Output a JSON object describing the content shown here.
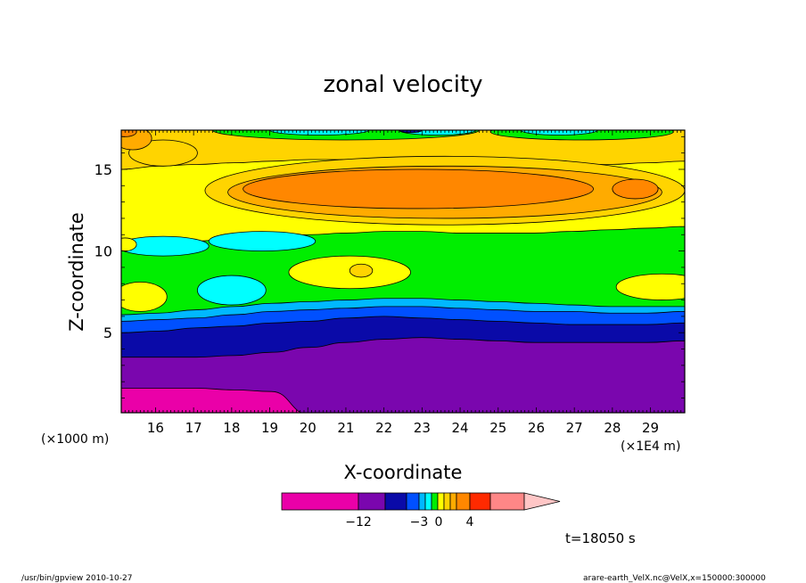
{
  "chart_data": {
    "type": "heatmap",
    "title": "zonal velocity",
    "xlabel": "X-coordinate",
    "ylabel": "Z-coordinate",
    "x_unit_left": "(×1000 m)",
    "x_unit_right": "(×1E4 m)",
    "x_ticks": [
      "16",
      "17",
      "18",
      "19",
      "20",
      "21",
      "22",
      "23",
      "24",
      "25",
      "26",
      "27",
      "28",
      "29"
    ],
    "y_ticks": [
      "5",
      "10",
      "15"
    ],
    "xlim": [
      15.1,
      29.9
    ],
    "ylim": [
      0.1,
      17.4
    ],
    "time_label": "t=18050 s",
    "colorbar": {
      "tick_labels": [
        "−12",
        "−3",
        "0",
        "4"
      ],
      "colors": [
        "#ea00a8",
        "#7a06ae",
        "#0a0aa8",
        "#0050ff",
        "#00b8ff",
        "#00ffff",
        "#00ee00",
        "#ffff00",
        "#ffd400",
        "#ffab00",
        "#ff8700",
        "#ff2a00",
        "#ff8787",
        "#ffc6c6"
      ],
      "widths": [
        86,
        30,
        24,
        14,
        7,
        7,
        7,
        7,
        7,
        7,
        15,
        23,
        38,
        40
      ]
    },
    "bands": [
      {
        "level": "-13",
        "color": "#ea00a8",
        "top": [
          1.6,
          1.6,
          1.6,
          1.5,
          1.4,
          0.0,
          0.0,
          0.0,
          0.0,
          0.0,
          0.0,
          0.0,
          0.0,
          0.0,
          0.0,
          0.0
        ]
      },
      {
        "level": "-9",
        "color": "#7a06ae",
        "top": [
          3.5,
          3.5,
          3.5,
          3.6,
          3.8,
          4.1,
          4.4,
          4.6,
          4.7,
          4.6,
          4.5,
          4.4,
          4.4,
          4.4,
          4.4,
          4.5
        ]
      },
      {
        "level": "-6",
        "color": "#0a0aa8",
        "top": [
          5.0,
          5.1,
          5.3,
          5.4,
          5.6,
          5.7,
          5.9,
          6.0,
          5.9,
          5.8,
          5.7,
          5.6,
          5.5,
          5.5,
          5.5,
          5.6
        ]
      },
      {
        "level": "-3",
        "color": "#0050ff",
        "top": [
          5.7,
          5.8,
          5.9,
          6.1,
          6.3,
          6.4,
          6.5,
          6.6,
          6.6,
          6.5,
          6.4,
          6.3,
          6.3,
          6.2,
          6.2,
          6.3
        ]
      },
      {
        "level": "-1",
        "color": "#00b8ff",
        "top": [
          6.1,
          6.2,
          6.4,
          6.6,
          6.8,
          6.9,
          7.0,
          7.1,
          7.1,
          7.0,
          6.9,
          6.8,
          6.7,
          6.6,
          6.6,
          6.6
        ]
      },
      {
        "level": "1",
        "color": "#00ee00",
        "top": [
          10.3,
          10.4,
          10.6,
          10.8,
          10.9,
          11.0,
          11.1,
          11.2,
          11.2,
          11.1,
          11.1,
          11.1,
          11.2,
          11.3,
          11.4,
          11.5
        ]
      },
      {
        "level": "2",
        "color": "#ffff00",
        "top": [
          15.0,
          15.2,
          15.3,
          15.4,
          15.5,
          15.6,
          15.6,
          15.7,
          15.7,
          15.6,
          15.5,
          15.4,
          15.3,
          15.3,
          15.4,
          15.5
        ]
      },
      {
        "level": "3",
        "color": "#ffd400",
        "top": [
          17.4,
          17.4,
          17.4,
          17.4,
          17.4,
          17.4,
          17.4,
          17.4,
          17.4,
          17.4,
          17.4,
          17.4,
          17.4,
          17.4,
          17.4,
          17.4
        ]
      }
    ],
    "blobs": [
      {
        "color": "#00ffff",
        "cx": 18.0,
        "cy": 7.6,
        "rx": 0.9,
        "ry": 0.9
      },
      {
        "color": "#00ffff",
        "cx": 16.2,
        "cy": 10.3,
        "rx": 1.2,
        "ry": 0.6
      },
      {
        "color": "#00ffff",
        "cx": 18.8,
        "cy": 10.6,
        "rx": 1.4,
        "ry": 0.6
      },
      {
        "color": "#ffff00",
        "cx": 21.1,
        "cy": 8.7,
        "rx": 1.6,
        "ry": 1.0
      },
      {
        "color": "#ffd400",
        "cx": 21.4,
        "cy": 8.8,
        "rx": 0.3,
        "ry": 0.4
      },
      {
        "color": "#ffff00",
        "cx": 15.6,
        "cy": 7.2,
        "rx": 0.7,
        "ry": 0.9
      },
      {
        "color": "#ffff00",
        "cx": 29.3,
        "cy": 7.8,
        "rx": 1.2,
        "ry": 0.8
      },
      {
        "color": "#ffff00",
        "cx": 15.2,
        "cy": 10.4,
        "rx": 0.3,
        "ry": 0.4
      },
      {
        "color": "#ffd400",
        "cx": 16.2,
        "cy": 16.0,
        "rx": 0.9,
        "ry": 0.8
      },
      {
        "color": "#ffd400",
        "cx": 23.6,
        "cy": 13.7,
        "rx": 6.3,
        "ry": 2.1
      },
      {
        "color": "#ffab00",
        "cx": 23.6,
        "cy": 13.6,
        "rx": 5.7,
        "ry": 1.6
      },
      {
        "color": "#ff8700",
        "cx": 22.9,
        "cy": 13.8,
        "rx": 4.6,
        "ry": 1.2
      },
      {
        "color": "#ff8700",
        "cx": 28.6,
        "cy": 13.8,
        "rx": 0.6,
        "ry": 0.6
      },
      {
        "color": "#ffab00",
        "cx": 15.4,
        "cy": 16.9,
        "rx": 0.5,
        "ry": 0.7
      },
      {
        "color": "#ff8700",
        "cx": 15.2,
        "cy": 17.3,
        "rx": 0.3,
        "ry": 0.3
      },
      {
        "color": "#00ee00",
        "cx": 21.0,
        "cy": 17.4,
        "rx": 3.5,
        "ry": 0.6
      },
      {
        "color": "#00ee00",
        "cx": 27.2,
        "cy": 17.3,
        "rx": 2.4,
        "ry": 0.5
      },
      {
        "color": "#00ffff",
        "cx": 20.3,
        "cy": 17.4,
        "rx": 1.3,
        "ry": 0.3
      },
      {
        "color": "#00ffff",
        "cx": 23.4,
        "cy": 17.4,
        "rx": 1.0,
        "ry": 0.3
      },
      {
        "color": "#00ffff",
        "cx": 26.6,
        "cy": 17.4,
        "rx": 1.0,
        "ry": 0.3
      },
      {
        "color": "#0a0aa8",
        "cx": 22.7,
        "cy": 17.4,
        "rx": 0.3,
        "ry": 0.15
      }
    ]
  },
  "footer": {
    "left": "/usr/bin/gpview  2010-10-27",
    "right": "arare-earth_VelX.nc@VelX,x=150000:300000"
  }
}
